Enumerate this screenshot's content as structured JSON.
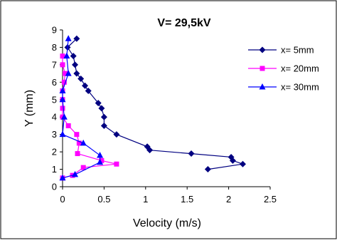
{
  "chart_data": {
    "type": "line",
    "title": "V= 29,5kV",
    "xlabel": "Velocity (m/s)",
    "ylabel": "Y (mm)",
    "xlim": [
      0,
      2.5
    ],
    "ylim": [
      0,
      9
    ],
    "xticks": [
      "0",
      "0.5",
      "1",
      "1.5",
      "2",
      "2.5"
    ],
    "yticks": [
      "0",
      "1",
      "2",
      "3",
      "4",
      "5",
      "6",
      "7",
      "8",
      "9"
    ],
    "grid": false,
    "legend_position": "right",
    "series": [
      {
        "name": "x= 5mm",
        "color": "#000080",
        "marker": "diamond",
        "points": [
          [
            1.75,
            1.0
          ],
          [
            2.17,
            1.3
          ],
          [
            2.05,
            1.5
          ],
          [
            2.03,
            1.7
          ],
          [
            1.55,
            1.9
          ],
          [
            1.05,
            2.1
          ],
          [
            1.02,
            2.3
          ],
          [
            0.65,
            3.0
          ],
          [
            0.5,
            3.5
          ],
          [
            0.5,
            4.0
          ],
          [
            0.47,
            4.5
          ],
          [
            0.43,
            4.8
          ],
          [
            0.31,
            5.5
          ],
          [
            0.27,
            5.8
          ],
          [
            0.22,
            6.2
          ],
          [
            0.17,
            6.5
          ],
          [
            0.15,
            7.0
          ],
          [
            0.13,
            7.5
          ],
          [
            0.06,
            8.0
          ],
          [
            0.17,
            8.5
          ]
        ]
      },
      {
        "name": "x= 20mm",
        "color": "#ff00ff",
        "marker": "square",
        "points": [
          [
            0.0,
            0.5
          ],
          [
            0.12,
            0.65
          ],
          [
            0.25,
            1.1
          ],
          [
            0.65,
            1.3
          ],
          [
            0.47,
            1.5
          ],
          [
            0.18,
            1.9
          ],
          [
            0.2,
            2.5
          ],
          [
            0.17,
            3.0
          ],
          [
            0.07,
            3.5
          ],
          [
            0.0,
            4.0
          ],
          [
            0.0,
            4.5
          ],
          [
            0.0,
            5.0
          ],
          [
            0.0,
            5.5
          ],
          [
            0.02,
            6.0
          ],
          [
            0.03,
            6.5
          ],
          [
            0.0,
            7.0
          ],
          [
            0.0,
            7.5
          ]
        ]
      },
      {
        "name": "x= 30mm",
        "color": "#0000ff",
        "marker": "triangle",
        "points": [
          [
            0.0,
            0.5
          ],
          [
            0.15,
            0.7
          ],
          [
            0.45,
            1.4
          ],
          [
            0.45,
            1.8
          ],
          [
            0.25,
            2.5
          ],
          [
            0.0,
            3.0
          ],
          [
            0.02,
            4.0
          ],
          [
            0.0,
            5.0
          ],
          [
            0.0,
            5.5
          ],
          [
            0.07,
            6.5
          ],
          [
            0.05,
            7.5
          ],
          [
            0.07,
            8.5
          ]
        ]
      }
    ]
  }
}
